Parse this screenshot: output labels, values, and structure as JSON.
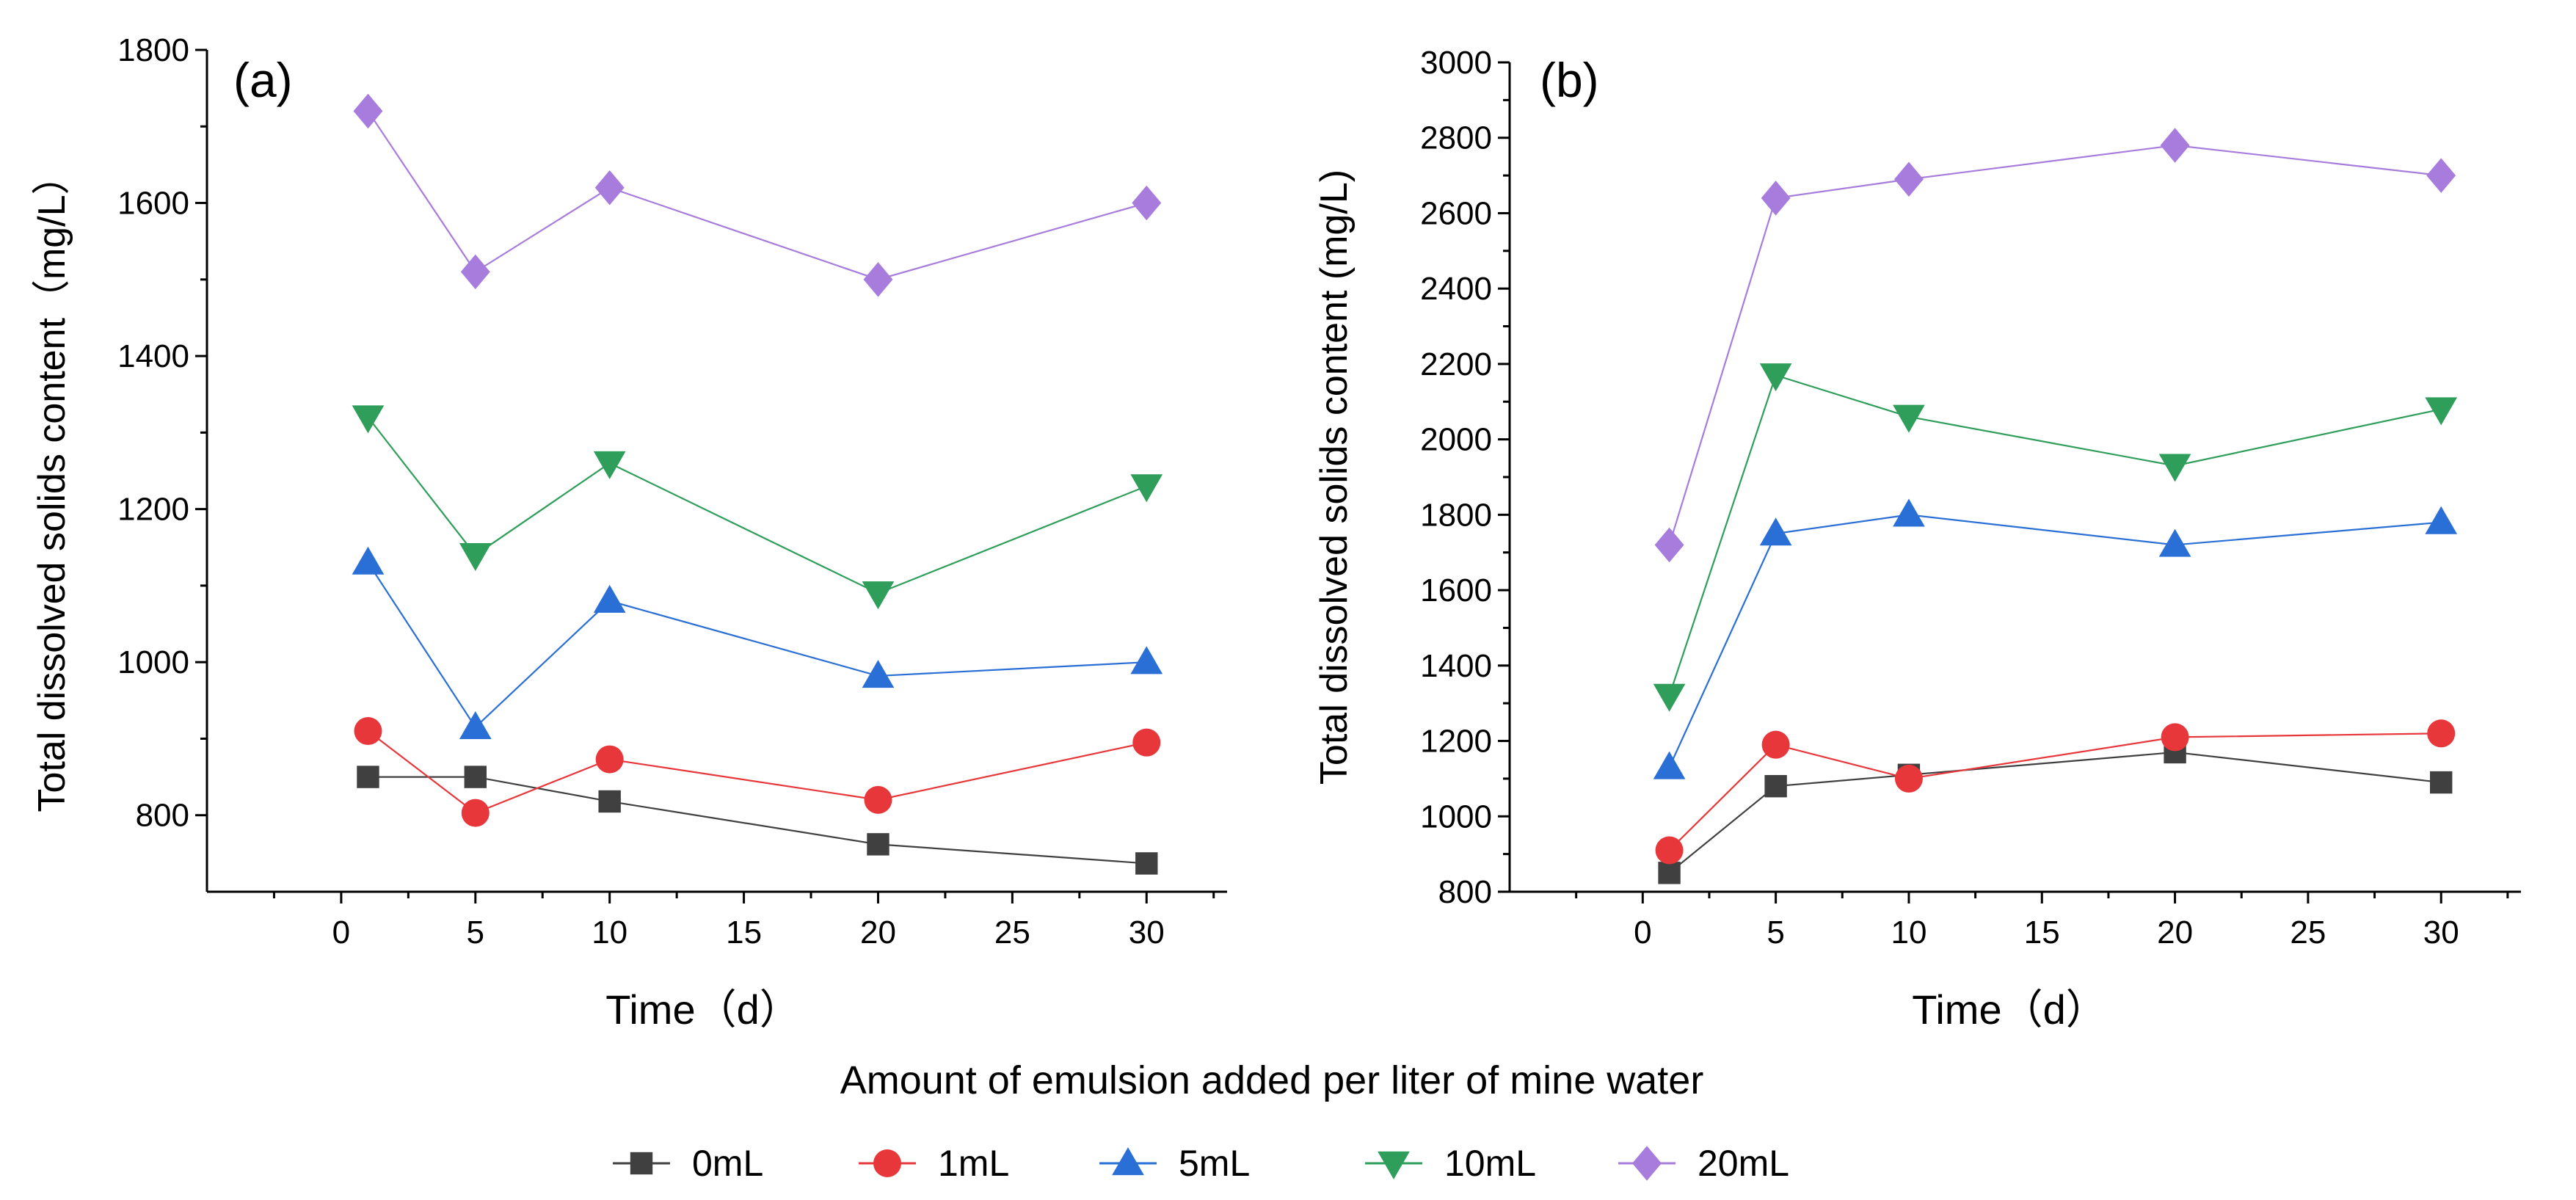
{
  "chart_data": [
    {
      "type": "line",
      "panel_label": "(a)",
      "xlabel": "Time（d）",
      "ylabel": "Total dissolved solids content（mg/L）",
      "xlim": [
        -5,
        33
      ],
      "ylim": [
        700,
        1800
      ],
      "xticks": [
        0,
        5,
        10,
        15,
        20,
        25,
        30
      ],
      "yticks": [
        800,
        1000,
        1200,
        1400,
        1600,
        1800
      ],
      "x": [
        1,
        5,
        10,
        20,
        30
      ],
      "series": [
        {
          "name": "0mL",
          "values": [
            850,
            850,
            818,
            762,
            737
          ]
        },
        {
          "name": "1mL",
          "values": [
            910,
            803,
            873,
            820,
            895
          ]
        },
        {
          "name": "5mL",
          "values": [
            1130,
            915,
            1080,
            982,
            1000
          ]
        },
        {
          "name": "10mL",
          "values": [
            1320,
            1140,
            1260,
            1090,
            1230
          ]
        },
        {
          "name": "20mL",
          "values": [
            1720,
            1510,
            1620,
            1500,
            1600
          ]
        }
      ]
    },
    {
      "type": "line",
      "panel_label": "(b)",
      "xlabel": "Time（d）",
      "ylabel": "Total dissolved solids content (mg/L)",
      "xlim": [
        -5,
        33
      ],
      "ylim": [
        800,
        3000
      ],
      "xticks": [
        0,
        5,
        10,
        15,
        20,
        25,
        30
      ],
      "yticks": [
        800,
        1000,
        1200,
        1400,
        1600,
        1800,
        2000,
        2200,
        2400,
        2600,
        2800,
        3000
      ],
      "x": [
        1,
        5,
        10,
        20,
        30
      ],
      "series": [
        {
          "name": "0mL",
          "values": [
            850,
            1080,
            1110,
            1170,
            1090
          ]
        },
        {
          "name": "1mL",
          "values": [
            910,
            1190,
            1100,
            1210,
            1220
          ]
        },
        {
          "name": "5mL",
          "values": [
            1130,
            1750,
            1800,
            1720,
            1780
          ]
        },
        {
          "name": "10mL",
          "values": [
            1320,
            2170,
            2060,
            1930,
            2080
          ]
        },
        {
          "name": "20mL",
          "values": [
            1720,
            2640,
            2690,
            2780,
            2700
          ]
        }
      ]
    }
  ],
  "legend": {
    "title": "Amount of emulsion added per liter of mine water",
    "placement": "bottom-center",
    "items": [
      {
        "label": "0mL",
        "color": "#404040",
        "marker": "square"
      },
      {
        "label": "1mL",
        "color": "#e8373a",
        "marker": "circle"
      },
      {
        "label": "5mL",
        "color": "#2a6fd6",
        "marker": "triangle-up"
      },
      {
        "label": "10mL",
        "color": "#2f9e5a",
        "marker": "triangle-down"
      },
      {
        "label": "20mL",
        "color": "#a77cdd",
        "marker": "diamond"
      }
    ]
  }
}
